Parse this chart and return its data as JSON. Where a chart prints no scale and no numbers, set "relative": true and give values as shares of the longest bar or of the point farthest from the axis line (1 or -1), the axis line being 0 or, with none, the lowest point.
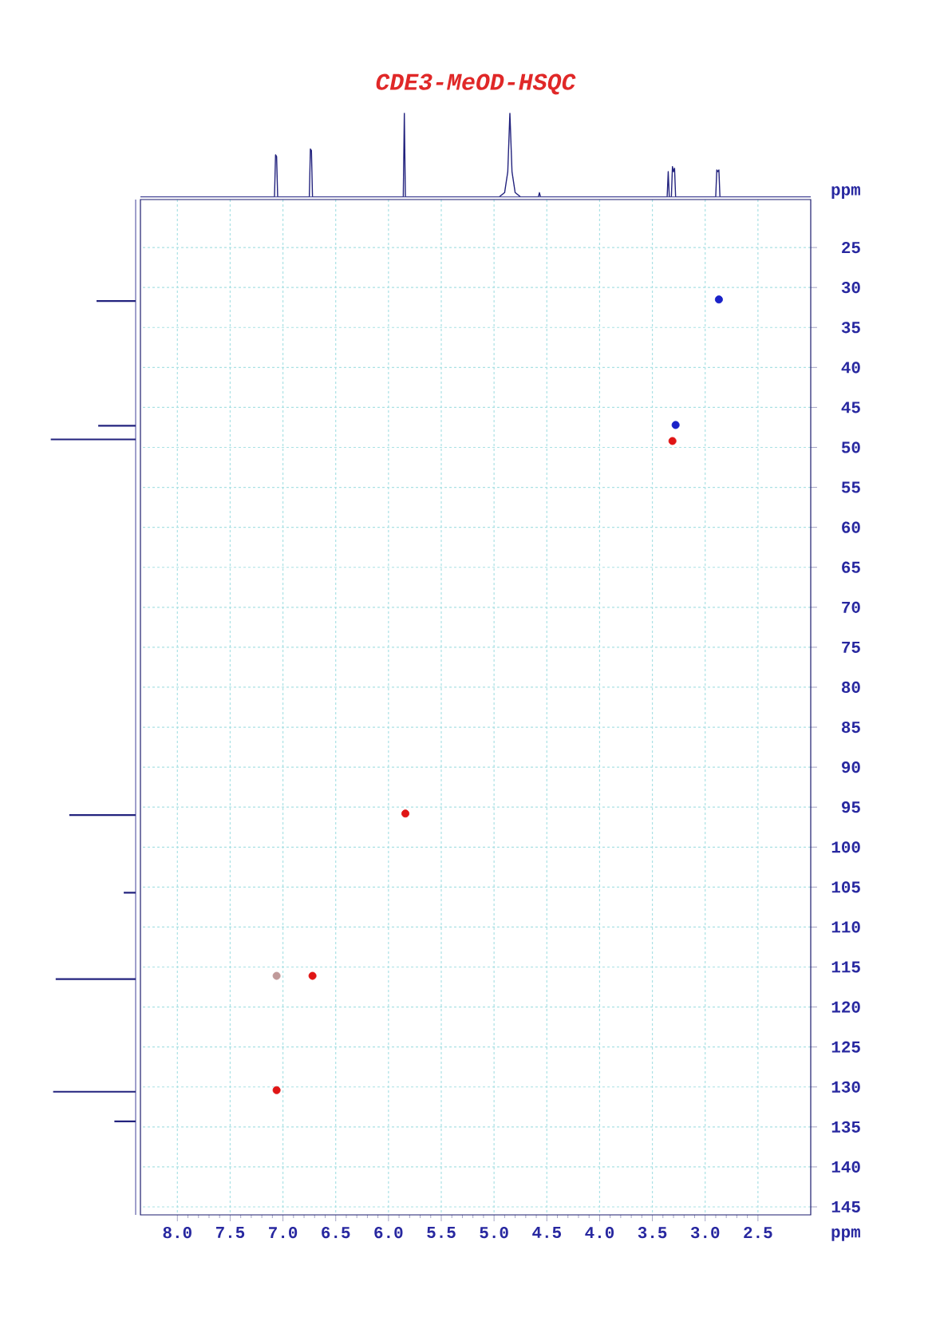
{
  "chart_data": [
    {
      "type": "line",
      "title": "CDE3-MeOD-HSQC",
      "relative": true,
      "color": "#23237e",
      "xlim": [
        8.35,
        2.0
      ],
      "tick_labels": false,
      "x": [
        8.35,
        7.08,
        7.07,
        7.06,
        7.05,
        6.75,
        6.74,
        6.73,
        6.72,
        5.86,
        5.85,
        5.84,
        4.95,
        4.9,
        4.87,
        4.85,
        4.83,
        4.8,
        4.75,
        4.58,
        4.57,
        4.56,
        3.36,
        3.35,
        3.34,
        3.32,
        3.31,
        3.3,
        3.29,
        3.28,
        2.9,
        2.89,
        2.88,
        2.87,
        2.86,
        2.0
      ],
      "values": [
        0,
        0,
        0.5,
        0.48,
        0,
        0,
        0.57,
        0.55,
        0,
        0,
        1,
        0,
        0,
        0.05,
        0.3,
        1,
        0.3,
        0.05,
        0,
        0,
        0.05,
        0,
        0,
        0.3,
        0,
        0,
        0.36,
        0.3,
        0.34,
        0,
        0,
        0.32,
        0.3,
        0.32,
        0,
        0
      ]
    },
    {
      "type": "bar",
      "orientation": "horizontal",
      "relative": true,
      "color": "#23237e",
      "ylim": [
        146,
        19
      ],
      "tick_labels": false,
      "x": [
        31.7,
        47.3,
        49.0,
        96.0,
        105.7,
        116.5,
        130.6,
        134.3
      ],
      "values": [
        0.46,
        0.44,
        1,
        0.78,
        0.14,
        0.94,
        0.97,
        0.25
      ]
    },
    {
      "type": "scatter",
      "marker": "circle",
      "grid": true,
      "xlabel": "ppm",
      "ylabel": "ppm",
      "xlim": [
        8.35,
        2.0
      ],
      "ylim": [
        146,
        19
      ],
      "xticks": [
        {
          "value": 8,
          "label": "8.0"
        },
        {
          "value": 7.5,
          "label": "7.5"
        },
        {
          "value": 7,
          "label": "7.0"
        },
        {
          "value": 6.5,
          "label": "6.5"
        },
        {
          "value": 6,
          "label": "6.0"
        },
        {
          "value": 5.5,
          "label": "5.5"
        },
        {
          "value": 5,
          "label": "5.0"
        },
        {
          "value": 4.5,
          "label": "4.5"
        },
        {
          "value": 4,
          "label": "4.0"
        },
        {
          "value": 3.5,
          "label": "3.5"
        },
        {
          "value": 3,
          "label": "3.0"
        },
        {
          "value": 2.5,
          "label": "2.5"
        }
      ],
      "yticks": [
        25,
        30,
        35,
        40,
        45,
        50,
        55,
        60,
        65,
        70,
        75,
        80,
        85,
        90,
        95,
        100,
        105,
        110,
        115,
        120,
        125,
        130,
        135,
        140,
        145
      ],
      "series": [
        {
          "color": "#e01515",
          "x": [
            3.31,
            5.84,
            6.72,
            7.06
          ],
          "values": [
            49.2,
            95.8,
            116.1,
            130.4
          ]
        },
        {
          "color": "#1a22c8",
          "x": [
            2.87,
            3.28
          ],
          "values": [
            31.5,
            47.2
          ]
        },
        {
          "color": "#c09a9a",
          "x": [
            7.06
          ],
          "values": [
            116.1
          ]
        }
      ]
    }
  ]
}
